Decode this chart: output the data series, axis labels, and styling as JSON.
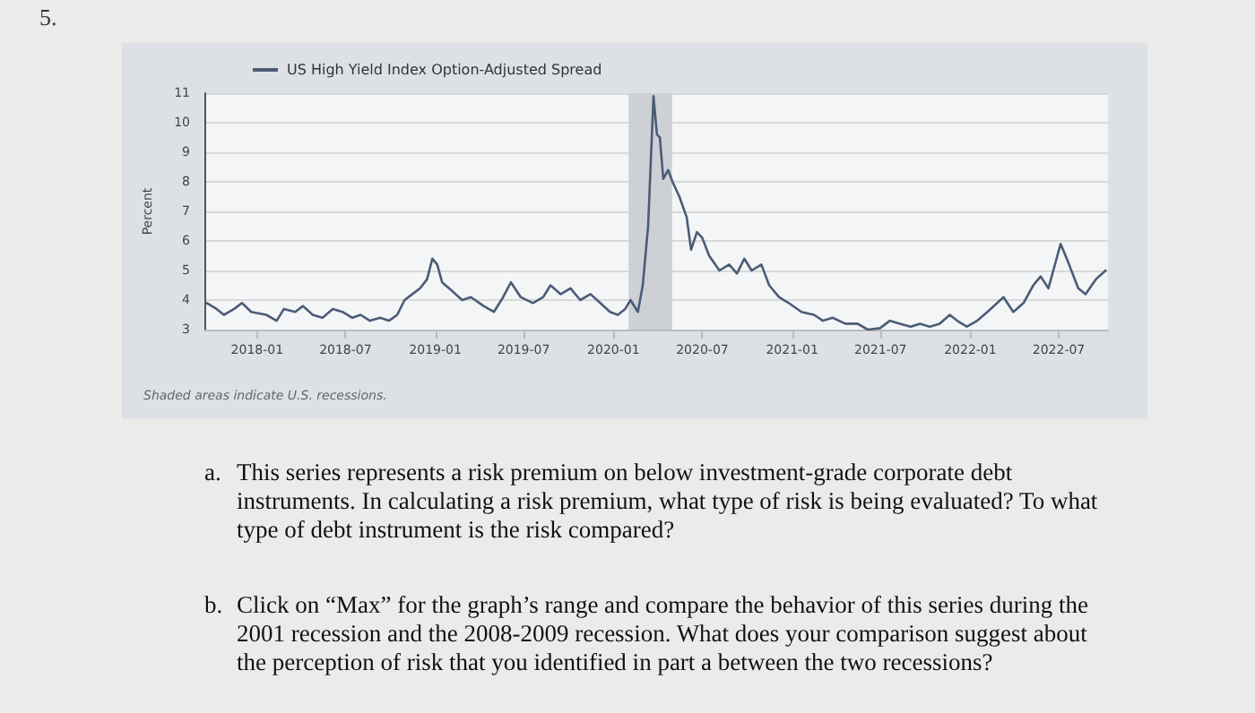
{
  "chart_data": {
    "type": "line",
    "ylabel": "Percent",
    "legend": "top left",
    "grid": "y",
    "marker": "none",
    "line_style": "solid",
    "annotations": [
      "5.",
      "Shaded areas indicate U.S. recessions.",
      "a. This series represents a risk premium on below investment-grade corporate debt instruments. In calculating a risk premium, what type of risk is being evaluated? To what type of debt instrument is the risk compared?",
      "b. Click on “Max” for the graph’s range and compare the behavior of this series during the 2001 recession and the 2008-2009 recession. What does your comparison suggest about the perception of risk that you identified in part a between the two recessions?"
    ],
    "xlim": [
      "2017-09-15",
      "2022-10-10"
    ],
    "xticks": [
      "2018-01",
      "2018-07",
      "2019-01",
      "2019-07",
      "2020-01",
      "2020-07",
      "2021-01",
      "2021-07",
      "2022-01",
      "2022-07"
    ],
    "ylim": [
      3,
      11
    ],
    "yticks": [
      3,
      4,
      5,
      6,
      7,
      8,
      9,
      10,
      11
    ],
    "bands": [
      {
        "axis": "x",
        "from": "2020-02-01",
        "to": "2020-04-30",
        "color": "#cdd1d6"
      }
    ],
    "x": [
      "2017-09-20",
      "2017-10-10",
      "2017-10-25",
      "2017-11-15",
      "2017-12-01",
      "2017-12-20",
      "2018-01-20",
      "2018-02-10",
      "2018-02-25",
      "2018-03-20",
      "2018-04-05",
      "2018-04-25",
      "2018-05-15",
      "2018-06-05",
      "2018-06-25",
      "2018-07-15",
      "2018-08-01",
      "2018-08-20",
      "2018-09-10",
      "2018-09-28",
      "2018-10-15",
      "2018-10-30",
      "2018-11-15",
      "2018-12-01",
      "2018-12-15",
      "2018-12-26",
      "2019-01-05",
      "2019-01-15",
      "2019-02-05",
      "2019-02-25",
      "2019-03-15",
      "2019-04-10",
      "2019-05-01",
      "2019-05-20",
      "2019-06-05",
      "2019-06-25",
      "2019-07-20",
      "2019-08-10",
      "2019-08-25",
      "2019-09-15",
      "2019-10-05",
      "2019-10-25",
      "2019-11-15",
      "2019-12-05",
      "2019-12-25",
      "2020-01-10",
      "2020-01-25",
      "2020-02-05",
      "2020-02-20",
      "2020-03-01",
      "2020-03-12",
      "2020-03-23",
      "2020-03-30",
      "2020-04-05",
      "2020-04-12",
      "2020-04-22",
      "2020-05-01",
      "2020-05-15",
      "2020-05-30",
      "2020-06-08",
      "2020-06-20",
      "2020-07-01",
      "2020-07-15",
      "2020-08-05",
      "2020-08-25",
      "2020-09-10",
      "2020-09-25",
      "2020-10-10",
      "2020-10-30",
      "2020-11-15",
      "2020-12-05",
      "2020-12-25",
      "2021-01-20",
      "2021-02-15",
      "2021-03-05",
      "2021-03-25",
      "2021-04-20",
      "2021-05-15",
      "2021-06-05",
      "2021-06-30",
      "2021-07-20",
      "2021-08-10",
      "2021-09-01",
      "2021-09-20",
      "2021-10-10",
      "2021-10-30",
      "2021-11-20",
      "2021-12-05",
      "2021-12-25",
      "2022-01-15",
      "2022-02-05",
      "2022-02-25",
      "2022-03-10",
      "2022-03-30",
      "2022-04-20",
      "2022-05-10",
      "2022-05-25",
      "2022-06-10",
      "2022-06-30",
      "2022-07-05",
      "2022-07-20",
      "2022-08-10",
      "2022-08-25",
      "2022-09-15",
      "2022-10-05"
    ],
    "series": [
      {
        "name": "US High Yield Index Option-Adjusted Spread",
        "color": "#4b5c77",
        "values": [
          3.9,
          3.7,
          3.5,
          3.7,
          3.9,
          3.6,
          3.5,
          3.3,
          3.7,
          3.6,
          3.8,
          3.5,
          3.4,
          3.7,
          3.6,
          3.4,
          3.5,
          3.3,
          3.4,
          3.3,
          3.5,
          4.0,
          4.2,
          4.4,
          4.7,
          5.4,
          5.2,
          4.6,
          4.3,
          4.0,
          4.1,
          3.8,
          3.6,
          4.1,
          4.6,
          4.1,
          3.9,
          4.1,
          4.5,
          4.2,
          4.4,
          4.0,
          4.2,
          3.9,
          3.6,
          3.5,
          3.7,
          4.0,
          3.6,
          4.5,
          6.5,
          10.9,
          9.6,
          9.5,
          8.1,
          8.4,
          8.0,
          7.5,
          6.8,
          5.7,
          6.3,
          6.1,
          5.5,
          5.0,
          5.2,
          4.9,
          5.4,
          5.0,
          5.2,
          4.5,
          4.1,
          3.9,
          3.6,
          3.5,
          3.3,
          3.4,
          3.2,
          3.2,
          3.0,
          3.05,
          3.3,
          3.2,
          3.1,
          3.2,
          3.1,
          3.2,
          3.5,
          3.3,
          3.1,
          3.3,
          3.6,
          3.9,
          4.1,
          3.6,
          3.9,
          4.5,
          4.8,
          4.4,
          5.6,
          5.9,
          5.3,
          4.4,
          4.2,
          4.7,
          5.0
        ]
      }
    ]
  }
}
